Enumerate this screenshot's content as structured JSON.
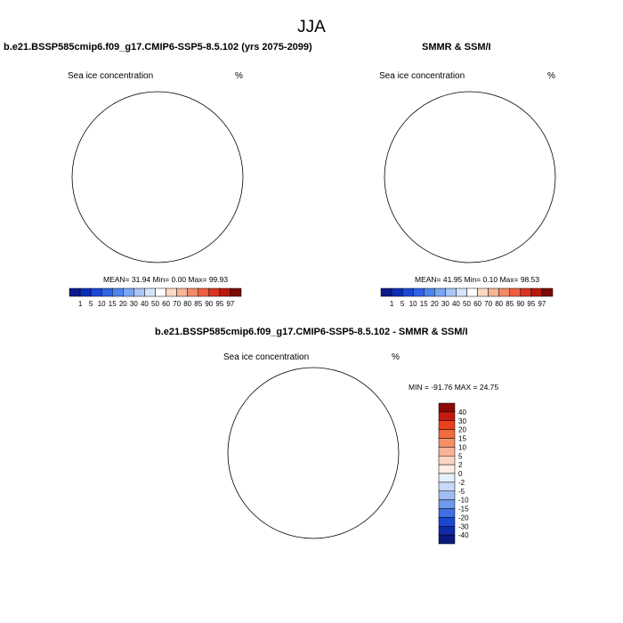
{
  "title": "JJA",
  "panels": [
    {
      "id": "model",
      "title": "b.e21.BSSP585cmip6.f09_g17.CMIP6-SSP5-8.5.102 (yrs 2075-2099)",
      "left_label": "Sea ice concentration",
      "right_label": "%",
      "stats": "MEAN=  31.94  Min=   0.00  Max=  99.93"
    },
    {
      "id": "obs",
      "title": "SMMR & SSM/I",
      "left_label": "Sea ice concentration",
      "right_label": "%",
      "stats": "MEAN=  41.95  Min=   0.10  Max=  98.53"
    },
    {
      "id": "diff",
      "title": "b.e21.BSSP585cmip6.f09_g17.CMIP6-SSP5-8.5.102 - SMMR & SSM/I",
      "left_label": "Sea ice concentration",
      "right_label": "%",
      "stats": "MIN = -91.76 MAX =  24.75"
    }
  ],
  "conc_colorbar": {
    "labels": [
      "1",
      "5",
      "10",
      "15",
      "20",
      "30",
      "40",
      "50",
      "60",
      "70",
      "80",
      "85",
      "90",
      "95",
      "97"
    ],
    "colors": [
      "#0a1a8c",
      "#0d2db8",
      "#1a47d6",
      "#2f64e6",
      "#4f85ef",
      "#7ba6f4",
      "#a9c6f8",
      "#d6e4fb",
      "#ffffff",
      "#fbd9c4",
      "#f7b496",
      "#f48b68",
      "#ef5f3f",
      "#d93521",
      "#b81a10",
      "#7a0a05"
    ]
  },
  "diff_colorbar": {
    "labels": [
      "40",
      "30",
      "20",
      "15",
      "10",
      "5",
      "2",
      "0",
      "-2",
      "-5",
      "-10",
      "-15",
      "-20",
      "-30",
      "-40"
    ],
    "colors": [
      "#8b0a05",
      "#c51a10",
      "#e8431e",
      "#f26b3c",
      "#f59068",
      "#f7b496",
      "#fbd6c2",
      "#fdeee4",
      "#e6eefb",
      "#c7d9f7",
      "#9fbdf2",
      "#6f98ec",
      "#3f6fe0",
      "#1a47d0",
      "#0d2aa8",
      "#0a1a7c"
    ]
  }
}
